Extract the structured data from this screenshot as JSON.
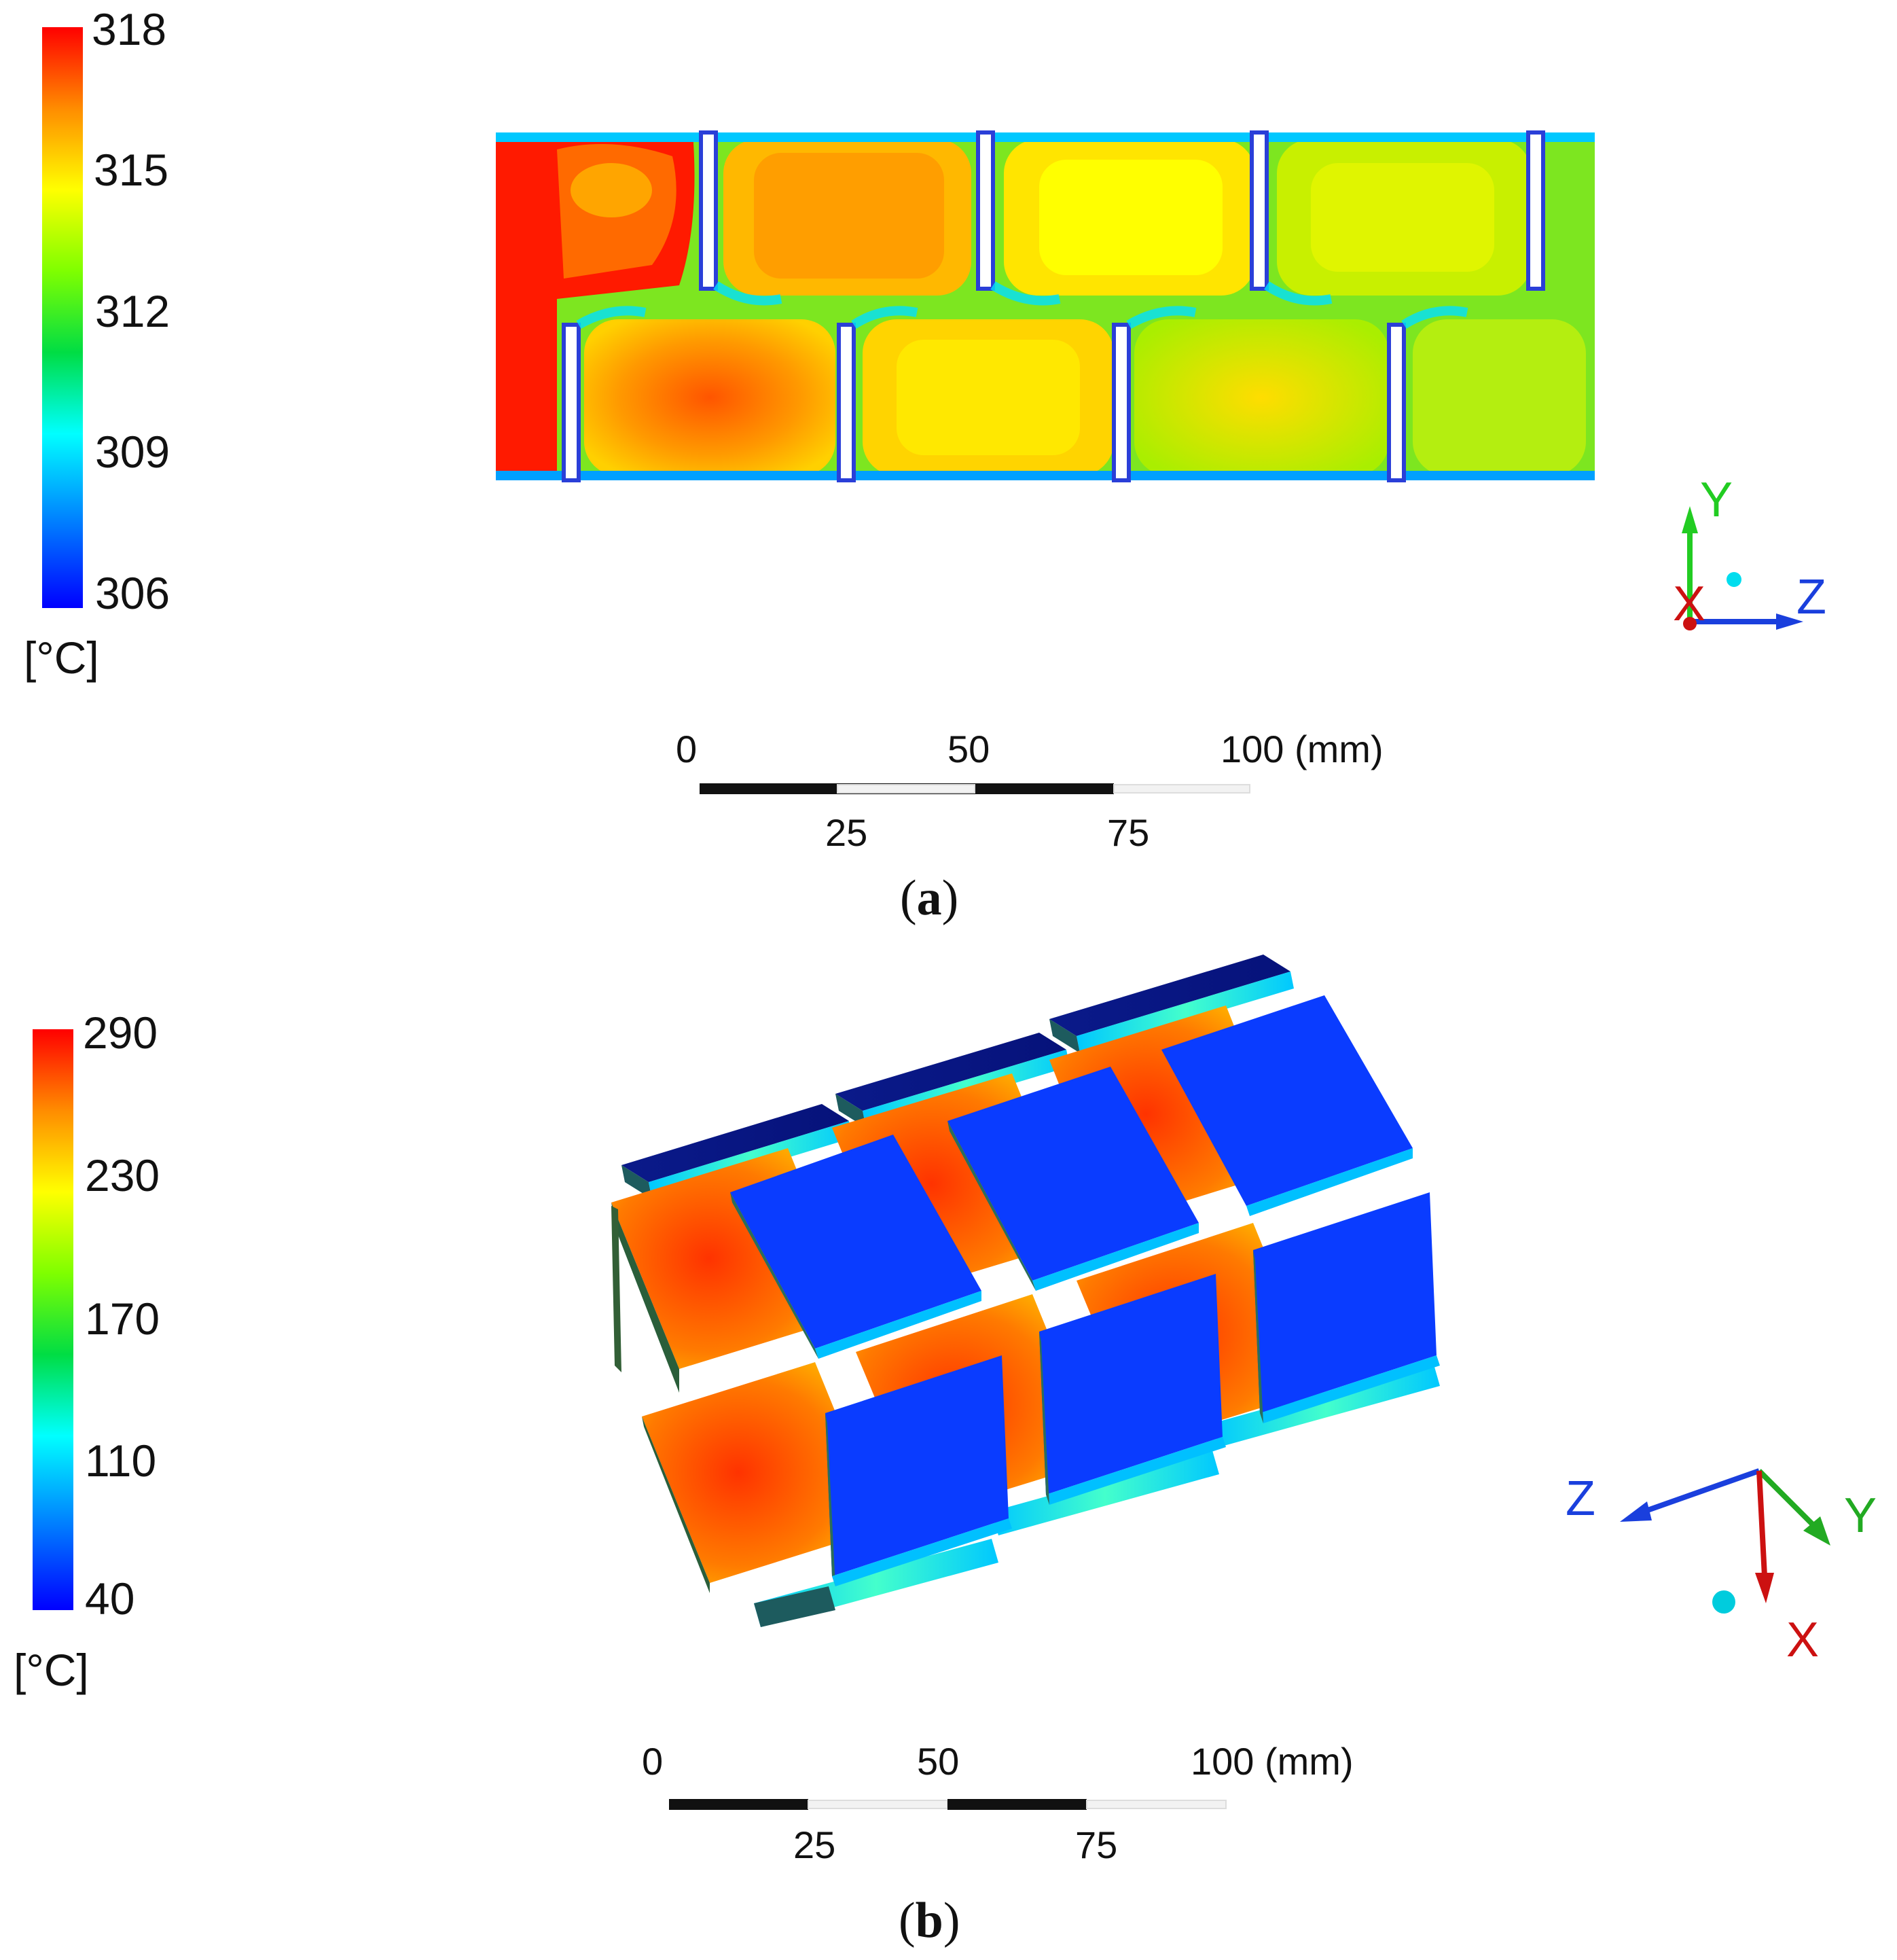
{
  "panel_a": {
    "legend": {
      "ticks": [
        "318",
        "315",
        "312",
        "309",
        "306"
      ],
      "unit": "[°C]",
      "colors": [
        "#ff0000",
        "#ff8c00",
        "#ffff00",
        "#7fff00",
        "#00dd44",
        "#00ffff",
        "#0080ff",
        "#0000ff"
      ]
    },
    "scale_bar": {
      "top_labels": [
        "0",
        "50",
        "100 (mm)"
      ],
      "bottom_labels": [
        "25",
        "75"
      ]
    },
    "axes": {
      "labels": [
        "Y",
        "Z",
        "X"
      ]
    },
    "caption_open": "(",
    "caption_letter": "a",
    "caption_close": ")"
  },
  "panel_b": {
    "legend": {
      "ticks": [
        "290",
        "230",
        "170",
        "110",
        "40"
      ],
      "unit": "[°C]",
      "colors": [
        "#ff0000",
        "#ff8c00",
        "#ffff00",
        "#7fff00",
        "#00dd44",
        "#00ffff",
        "#0080ff",
        "#0000ff"
      ]
    },
    "scale_bar": {
      "top_labels": [
        "0",
        "50",
        "100 (mm)"
      ],
      "bottom_labels": [
        "25",
        "75"
      ]
    },
    "axes": {
      "labels": [
        "Z",
        "Y",
        "X"
      ]
    },
    "caption_open": "(",
    "caption_letter": "b",
    "caption_close": ")"
  }
}
